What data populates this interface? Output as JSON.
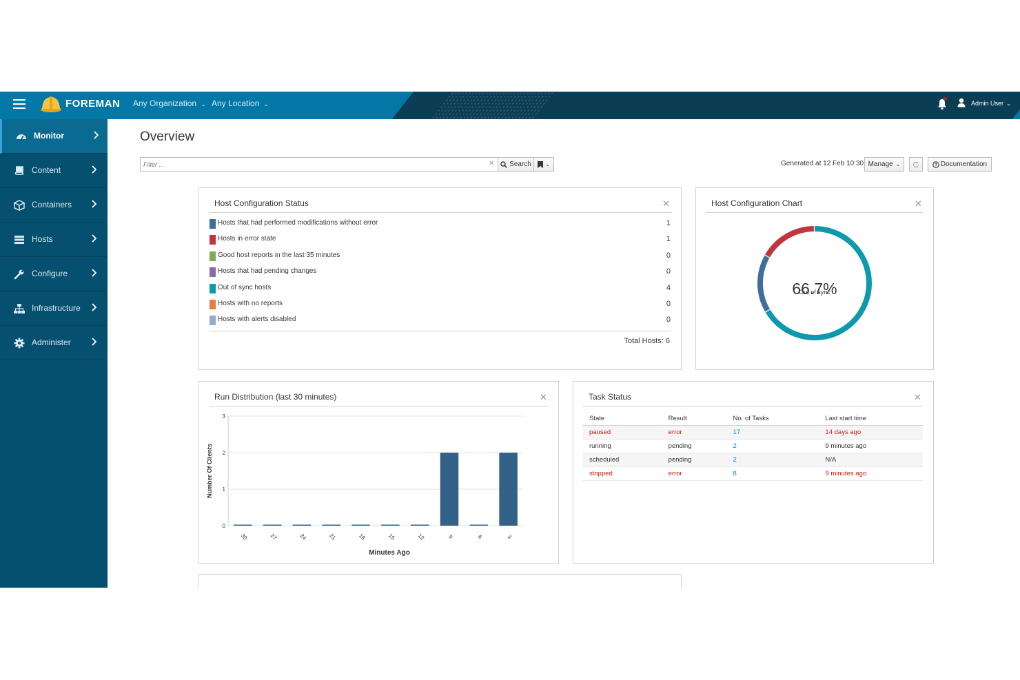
{
  "topbar": {
    "brand": "FOREMAN",
    "organization": "Any Organization",
    "location": "Any Location",
    "user": "Admin User"
  },
  "sidebar": {
    "items": [
      {
        "label": "Monitor",
        "icon": "dashboard-icon",
        "active": true
      },
      {
        "label": "Content",
        "icon": "book-icon"
      },
      {
        "label": "Containers",
        "icon": "cube-icon"
      },
      {
        "label": "Hosts",
        "icon": "server-icon"
      },
      {
        "label": "Configure",
        "icon": "wrench-icon"
      },
      {
        "label": "Infrastructure",
        "icon": "network-icon"
      },
      {
        "label": "Administer",
        "icon": "gear-icon"
      }
    ]
  },
  "page": {
    "title": "Overview",
    "filter_placeholder": "Filter ...",
    "search_label": "Search",
    "generated": "Generated at 12 Feb 10:30",
    "manage_label": "Manage",
    "documentation_label": "Documentation"
  },
  "host_status": {
    "title": "Host Configuration Status",
    "rows": [
      {
        "label": "Hosts that had performed modifications without error",
        "count": "1",
        "color": "#3f6f9a"
      },
      {
        "label": "Hosts in error state",
        "count": "1",
        "color": "#c0363f"
      },
      {
        "label": "Good host reports in the last 35 minutes",
        "count": "0",
        "color": "#7eab5a"
      },
      {
        "label": "Hosts that had pending changes",
        "count": "0",
        "color": "#8a6aa6"
      },
      {
        "label": "Out of sync hosts",
        "count": "4",
        "color": "#0e9aac"
      },
      {
        "label": "Hosts with no reports",
        "count": "0",
        "color": "#ec7a43"
      },
      {
        "label": "Hosts with alerts disabled",
        "count": "0",
        "color": "#91acd0"
      }
    ],
    "total": "Total Hosts: 6"
  },
  "host_chart": {
    "title": "Host Configuration Chart",
    "big_text": "66.7%",
    "small_text": "Out of sync",
    "segments": [
      {
        "label": "Out of sync hosts",
        "value": 4,
        "color": "#0e9aac"
      },
      {
        "label": "Hosts that had performed modifications without error",
        "value": 1,
        "color": "#3f6f9a"
      },
      {
        "label": "Hosts in error state",
        "value": 1,
        "color": "#c0363f"
      }
    ]
  },
  "run_distribution": {
    "title": "Run Distribution (last 30 minutes)"
  },
  "task_status": {
    "title": "Task Status",
    "headers": [
      "State",
      "Result",
      "No. of Tasks",
      "Last start time"
    ],
    "rows": [
      {
        "state": "paused",
        "result": "error",
        "count": "17",
        "last": "14 days ago",
        "alert": true
      },
      {
        "state": "running",
        "result": "pending",
        "count": "2",
        "last": "9 minutes ago",
        "alert": false
      },
      {
        "state": "scheduled",
        "result": "pending",
        "count": "2",
        "last": "N/A",
        "alert": false
      },
      {
        "state": "stopped",
        "result": "error",
        "count": "8",
        "last": "9 minutes ago",
        "alert": true
      }
    ]
  },
  "chart_data": {
    "type": "bar",
    "title": "",
    "xlabel": "Minutes Ago",
    "ylabel": "Number Of Clients",
    "categories": [
      "30",
      "27",
      "24",
      "21",
      "18",
      "15",
      "12",
      "9",
      "6",
      "3"
    ],
    "values": [
      0,
      0,
      0,
      0,
      0,
      0,
      0,
      2,
      0,
      2
    ],
    "ylim": [
      0,
      3
    ],
    "yticks": [
      "0",
      "1",
      "2",
      "3"
    ],
    "color": "#336188",
    "grid": true,
    "legend": "none"
  }
}
